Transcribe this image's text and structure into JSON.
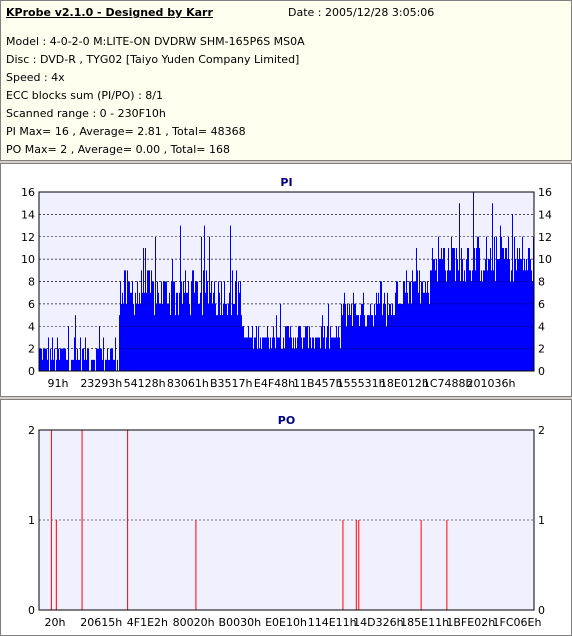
{
  "header": {
    "title": "KProbe v2.1.0 - Designed by Karr",
    "date": "Date : 2005/12/28 3:05:06"
  },
  "info_lines": [
    "Model : 4-0-2-0 M:LITE-ON DVDRW SHM-165P6S MS0A",
    "Disc : DVD-R , TYG02 [Taiyo Yuden Company Limited]",
    "Speed : 4x",
    "ECC blocks sum (PI/PO) : 8/1",
    "Scanned range : 0 - 230F10h",
    "PI Max= 16 , Average= 2.81 , Total= 48368",
    "PO Max= 2 , Average= 0.00 , Total= 168"
  ],
  "charts": {
    "pi": {
      "title": "PI",
      "y_ticks": [
        "0",
        "2",
        "4",
        "6",
        "8",
        "10",
        "12",
        "14",
        "16"
      ],
      "x_ticks": [
        "91h",
        "23293h",
        "54128h",
        "83061h",
        "B3517h",
        "E4F48h",
        "11B457h",
        "155531h",
        "18E012h",
        "1C7488h",
        "201036h"
      ],
      "colors": {
        "bar": "#0000ff",
        "bg": "#f0f0ff",
        "grid": "#000000"
      }
    },
    "po": {
      "title": "PO",
      "y_ticks": [
        "0",
        "1",
        "2"
      ],
      "x_ticks": [
        "20h",
        "20615h",
        "4F1E2h",
        "80020h",
        "B0030h",
        "E0E10h",
        "114E11h",
        "14D326h",
        "185E11h",
        "1BFE02h",
        "1FC06Eh"
      ],
      "colors": {
        "bar": "#ff0000",
        "bg": "#f0f0ff",
        "grid": "#000000"
      }
    }
  },
  "chart_data": [
    {
      "type": "bar",
      "title": "PI",
      "ylim": [
        0,
        16
      ],
      "x_ticks": [
        "91h",
        "23293h",
        "54128h",
        "83061h",
        "B3517h",
        "E4F48h",
        "11B457h",
        "155531h",
        "18E012h",
        "1C7488h",
        "201036h"
      ],
      "segments": [
        {
          "from": 0.0,
          "to": 0.16,
          "typical": [
            0,
            3
          ],
          "peaks": 7
        },
        {
          "from": 0.16,
          "to": 0.41,
          "typical": [
            5,
            9
          ],
          "peaks": 13
        },
        {
          "from": 0.41,
          "to": 0.61,
          "typical": [
            2,
            4
          ],
          "peaks": 6
        },
        {
          "from": 0.61,
          "to": 0.72,
          "typical": [
            4,
            7
          ],
          "peaks": 9
        },
        {
          "from": 0.72,
          "to": 0.79,
          "typical": [
            6,
            9
          ],
          "peaks": 12
        },
        {
          "from": 0.79,
          "to": 1.0,
          "typical": [
            8,
            12
          ],
          "peaks": 16
        }
      ]
    },
    {
      "type": "bar",
      "title": "PO",
      "ylim": [
        0,
        2
      ],
      "x_ticks": [
        "20h",
        "20615h",
        "4F1E2h",
        "80020h",
        "B0030h",
        "E0E10h",
        "114E11h",
        "14D326h",
        "185E11h",
        "1BFE02h",
        "1FC06Eh"
      ],
      "spikes": [
        {
          "x": 0.025,
          "y": 2
        },
        {
          "x": 0.035,
          "y": 1
        },
        {
          "x": 0.087,
          "y": 2
        },
        {
          "x": 0.179,
          "y": 2
        },
        {
          "x": 0.317,
          "y": 1
        },
        {
          "x": 0.614,
          "y": 1
        },
        {
          "x": 0.641,
          "y": 1
        },
        {
          "x": 0.646,
          "y": 1
        },
        {
          "x": 0.772,
          "y": 1
        },
        {
          "x": 0.824,
          "y": 1
        }
      ]
    }
  ]
}
